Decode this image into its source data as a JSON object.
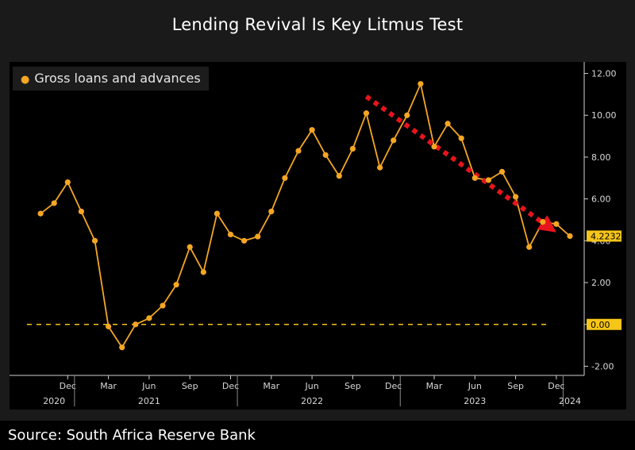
{
  "title": "Lending Revival Is Key Litmus Test",
  "source": "Source: South Africa Reserve Bank",
  "colors": {
    "series": "#f5a623",
    "zero_line": "#f5c518",
    "arrow": "#e8141c",
    "background": "#000000"
  },
  "chart_data": {
    "type": "line",
    "series": [
      {
        "name": "Gross loans and advances",
        "x": [
          "2020-10",
          "2020-11",
          "2020-12",
          "2021-01",
          "2021-02",
          "2021-03",
          "2021-04",
          "2021-05",
          "2021-06",
          "2021-07",
          "2021-08",
          "2021-09",
          "2021-10",
          "2021-11",
          "2021-12",
          "2022-01",
          "2022-02",
          "2022-03",
          "2022-04",
          "2022-05",
          "2022-06",
          "2022-07",
          "2022-08",
          "2022-09",
          "2022-10",
          "2022-11",
          "2022-12",
          "2023-01",
          "2023-02",
          "2023-03",
          "2023-04",
          "2023-05",
          "2023-06",
          "2023-07",
          "2023-08",
          "2023-09",
          "2023-10",
          "2023-11",
          "2023-12",
          "2024-01"
        ],
        "values": [
          5.3,
          5.8,
          6.8,
          5.4,
          4.0,
          -0.1,
          -1.1,
          0.0,
          0.3,
          0.9,
          1.9,
          3.7,
          2.5,
          5.3,
          4.3,
          4.0,
          4.2,
          5.4,
          7.0,
          8.3,
          9.3,
          8.1,
          7.1,
          8.4,
          10.1,
          7.5,
          8.8,
          10.0,
          11.5,
          8.5,
          9.6,
          8.9,
          7.0,
          6.9,
          7.3,
          6.1,
          3.7,
          4.9,
          4.8,
          4.2232
        ]
      }
    ],
    "last_value_label": "4.2232",
    "zero_line_label": "0.00",
    "yticks": [
      -2,
      0,
      2,
      4,
      6,
      8,
      10,
      12
    ],
    "ytick_labels": [
      "-2.00",
      "0.00",
      "2.00",
      "4.00",
      "6.00",
      "8.00",
      "10.00",
      "12.00"
    ],
    "ylim": [
      -2.4,
      12.4
    ],
    "x_month_ticks": [
      {
        "x": "2020-12",
        "label": "Dec"
      },
      {
        "x": "2021-03",
        "label": "Mar"
      },
      {
        "x": "2021-06",
        "label": "Jun"
      },
      {
        "x": "2021-09",
        "label": "Sep"
      },
      {
        "x": "2021-12",
        "label": "Dec"
      },
      {
        "x": "2022-03",
        "label": "Mar"
      },
      {
        "x": "2022-06",
        "label": "Jun"
      },
      {
        "x": "2022-09",
        "label": "Sep"
      },
      {
        "x": "2022-12",
        "label": "Dec"
      },
      {
        "x": "2023-03",
        "label": "Mar"
      },
      {
        "x": "2023-06",
        "label": "Jun"
      },
      {
        "x": "2023-09",
        "label": "Sep"
      },
      {
        "x": "2023-12",
        "label": "Dec"
      }
    ],
    "x_year_labels": [
      {
        "x": "2020-11",
        "label": "2020"
      },
      {
        "x": "2021-06",
        "label": "2021"
      },
      {
        "x": "2022-06",
        "label": "2022"
      },
      {
        "x": "2023-06",
        "label": "2023"
      },
      {
        "x": "2024-01",
        "label": "2024"
      }
    ],
    "annotation": {
      "type": "dotted-arrow",
      "from": {
        "x": "2022-10",
        "y": 10.9
      },
      "to": {
        "x": "2023-12",
        "y": 4.4
      }
    },
    "legend_position": "top-left",
    "grid": false
  }
}
